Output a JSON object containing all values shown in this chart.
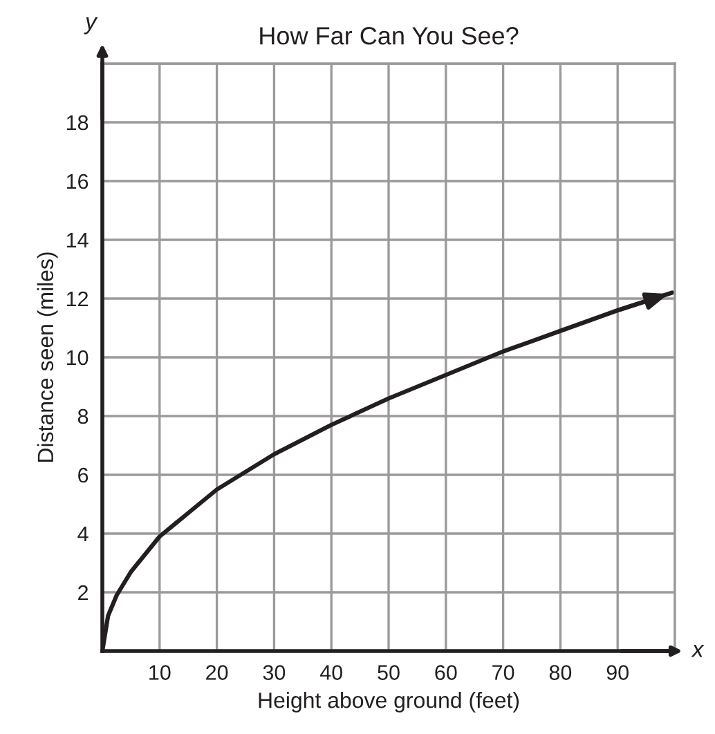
{
  "chart_data": {
    "type": "line",
    "title": "How Far Can You See?",
    "xlabel": "Height above ground (feet)",
    "ylabel": "Distance seen (miles)",
    "annotations": [
      "y",
      "x"
    ],
    "x": [
      0,
      1,
      2.5,
      5,
      10,
      15,
      20,
      30,
      40,
      50,
      60,
      70,
      80,
      90,
      99.5
    ],
    "series": [
      {
        "color": "#231f20",
        "values": [
          0,
          1.2,
          1.9,
          2.7,
          3.9,
          4.7,
          5.5,
          6.7,
          7.7,
          8.6,
          9.4,
          10.2,
          10.9,
          11.6,
          12.2
        ]
      }
    ],
    "xlim": [
      0,
      100
    ],
    "ylim": [
      0,
      20
    ],
    "xticks": [
      10,
      20,
      30,
      40,
      50,
      60,
      70,
      80,
      90
    ],
    "yticks": [
      2,
      4,
      6,
      8,
      10,
      12,
      14,
      16,
      18
    ],
    "grid": true,
    "marker": "none",
    "line_style": "solid"
  }
}
